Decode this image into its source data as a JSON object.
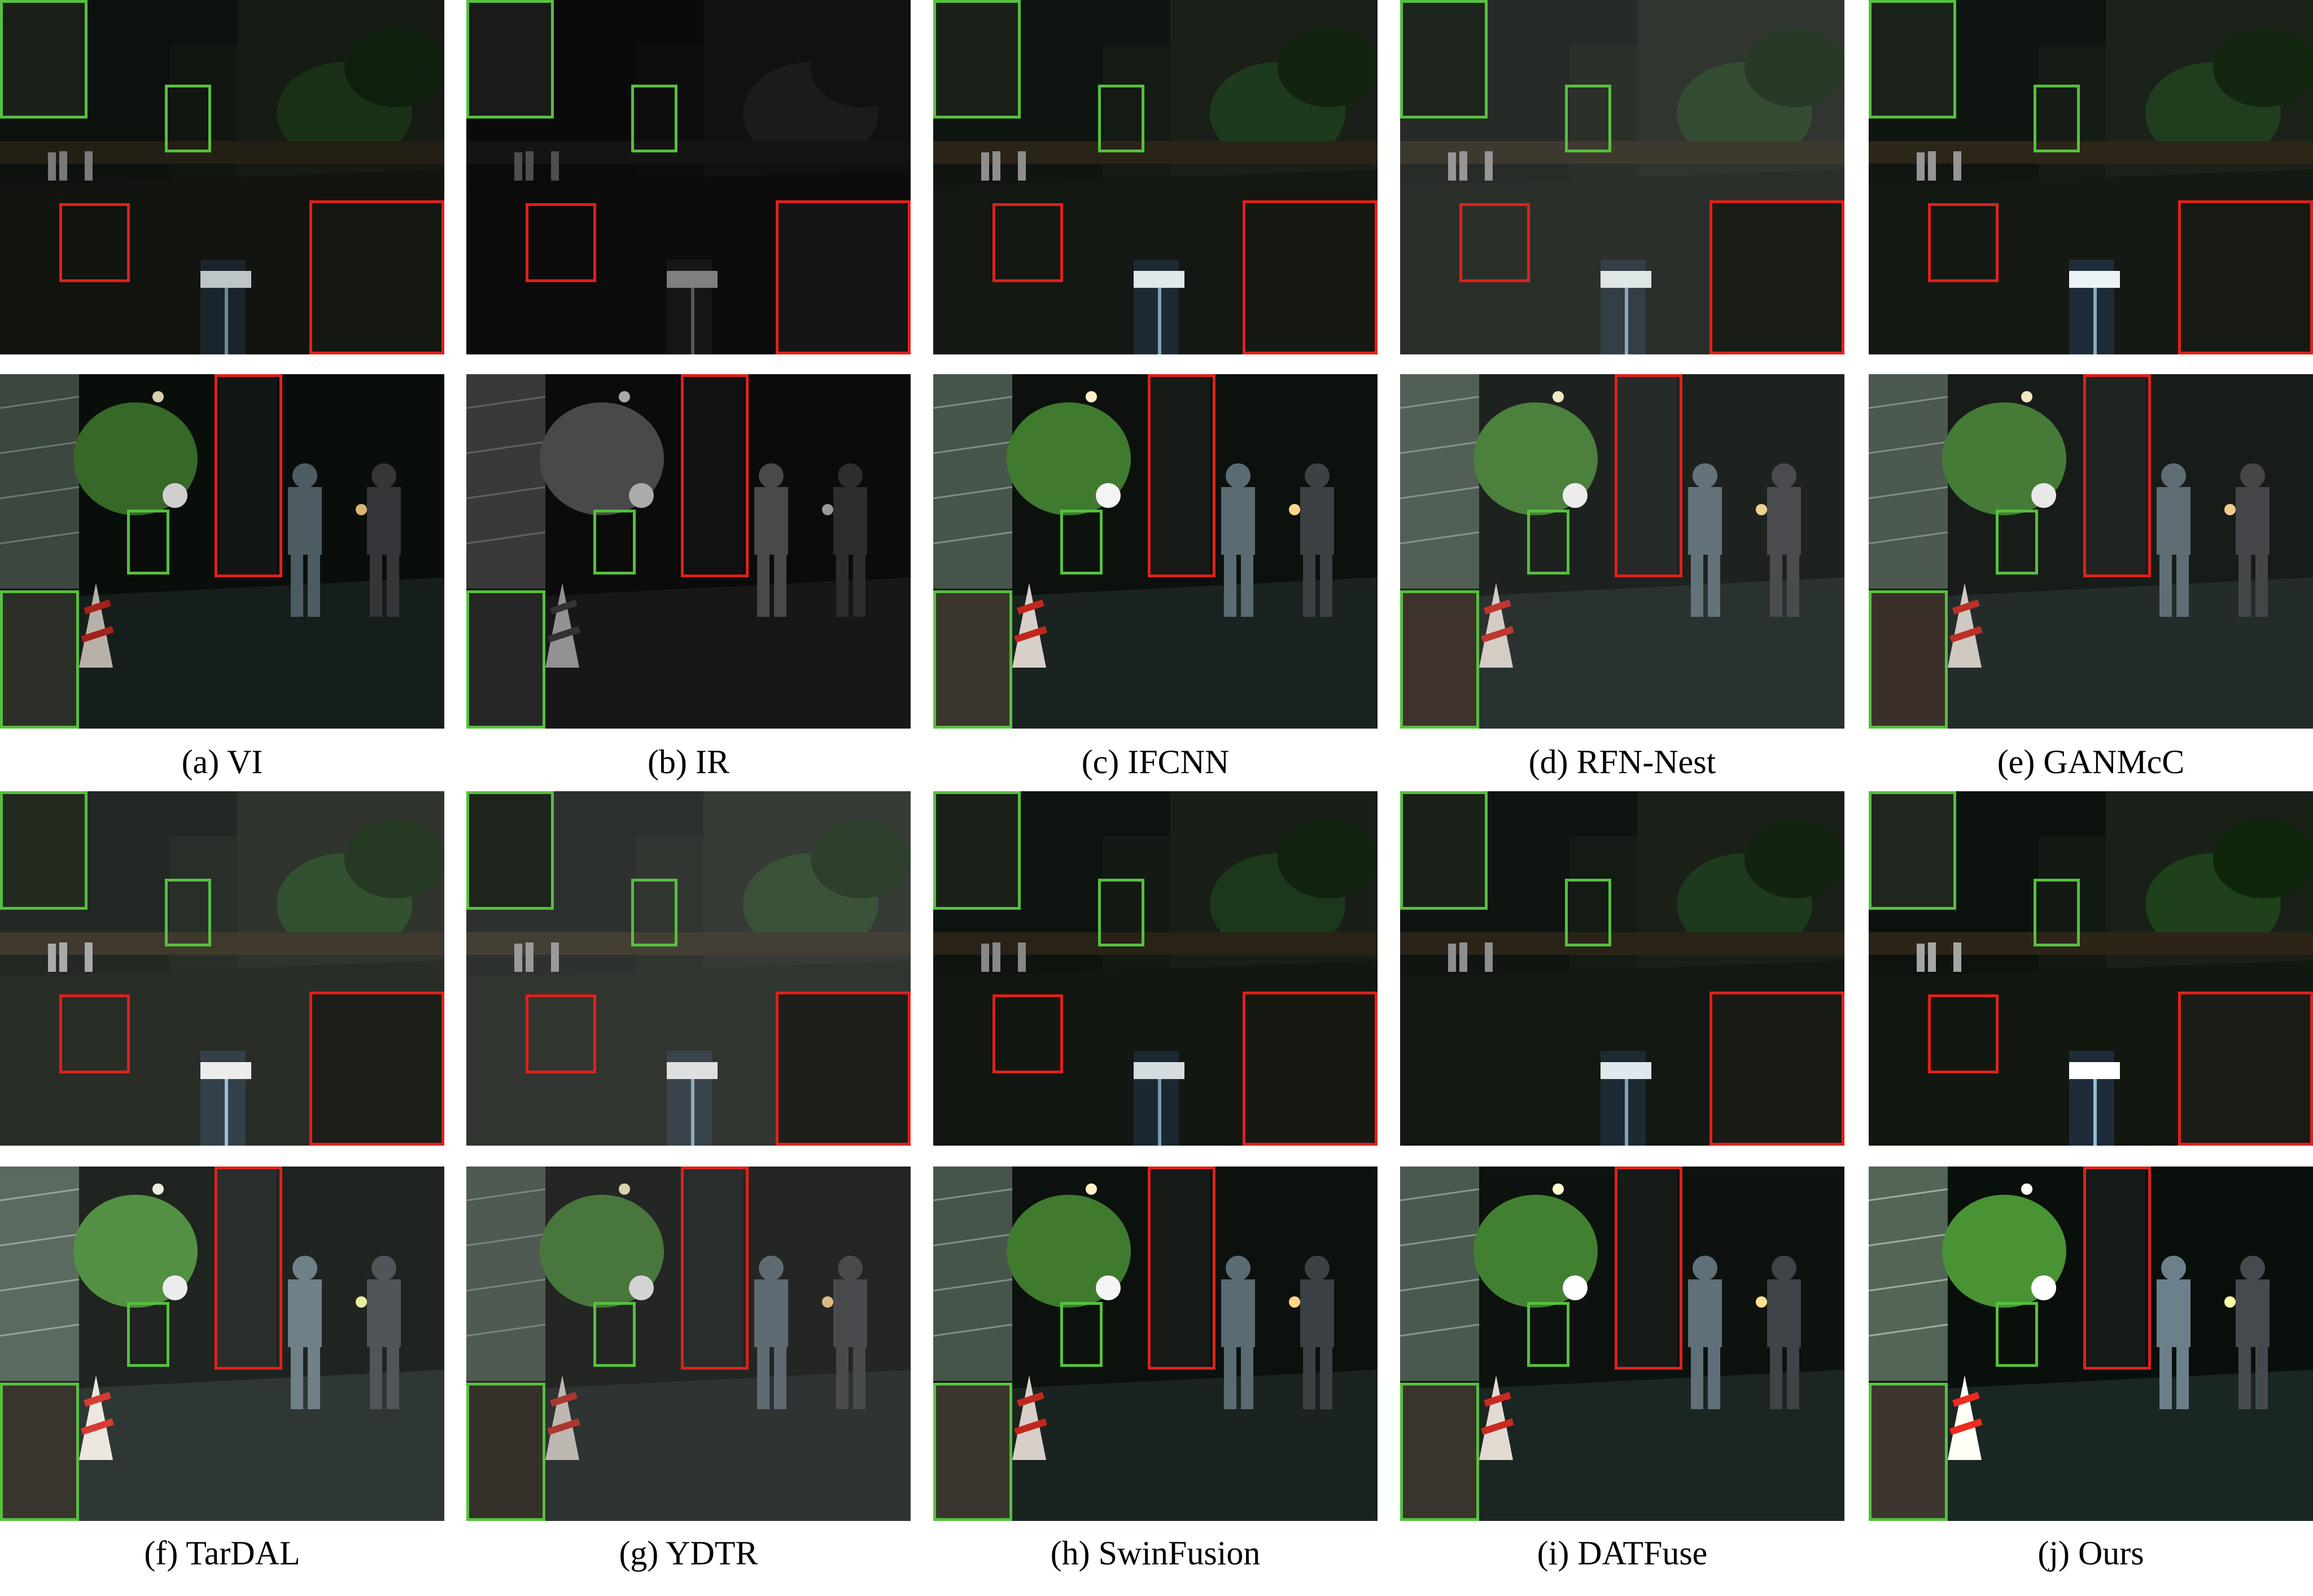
{
  "figure": {
    "captions_row1": [
      "(a) VI",
      "(b) IR",
      "(c) IFCNN",
      "(d) RFN-Nest",
      "(e) GANMcC"
    ],
    "captions_row2": [
      "(f) TarDAL",
      "(g) YDTR",
      "(h) SwinFusion",
      "(i) DATFuse",
      "(j) Ours"
    ]
  },
  "colors": {
    "zoom_box_red": "#e0201c",
    "zoom_box_green": "#56c03e",
    "night_sky": "#0d130f",
    "foliage": "#3f7a2f"
  },
  "icons": [
    "traffic-cone-icon",
    "pedestrian-icon",
    "street-lamp-icon",
    "bollard-light-icon"
  ]
}
